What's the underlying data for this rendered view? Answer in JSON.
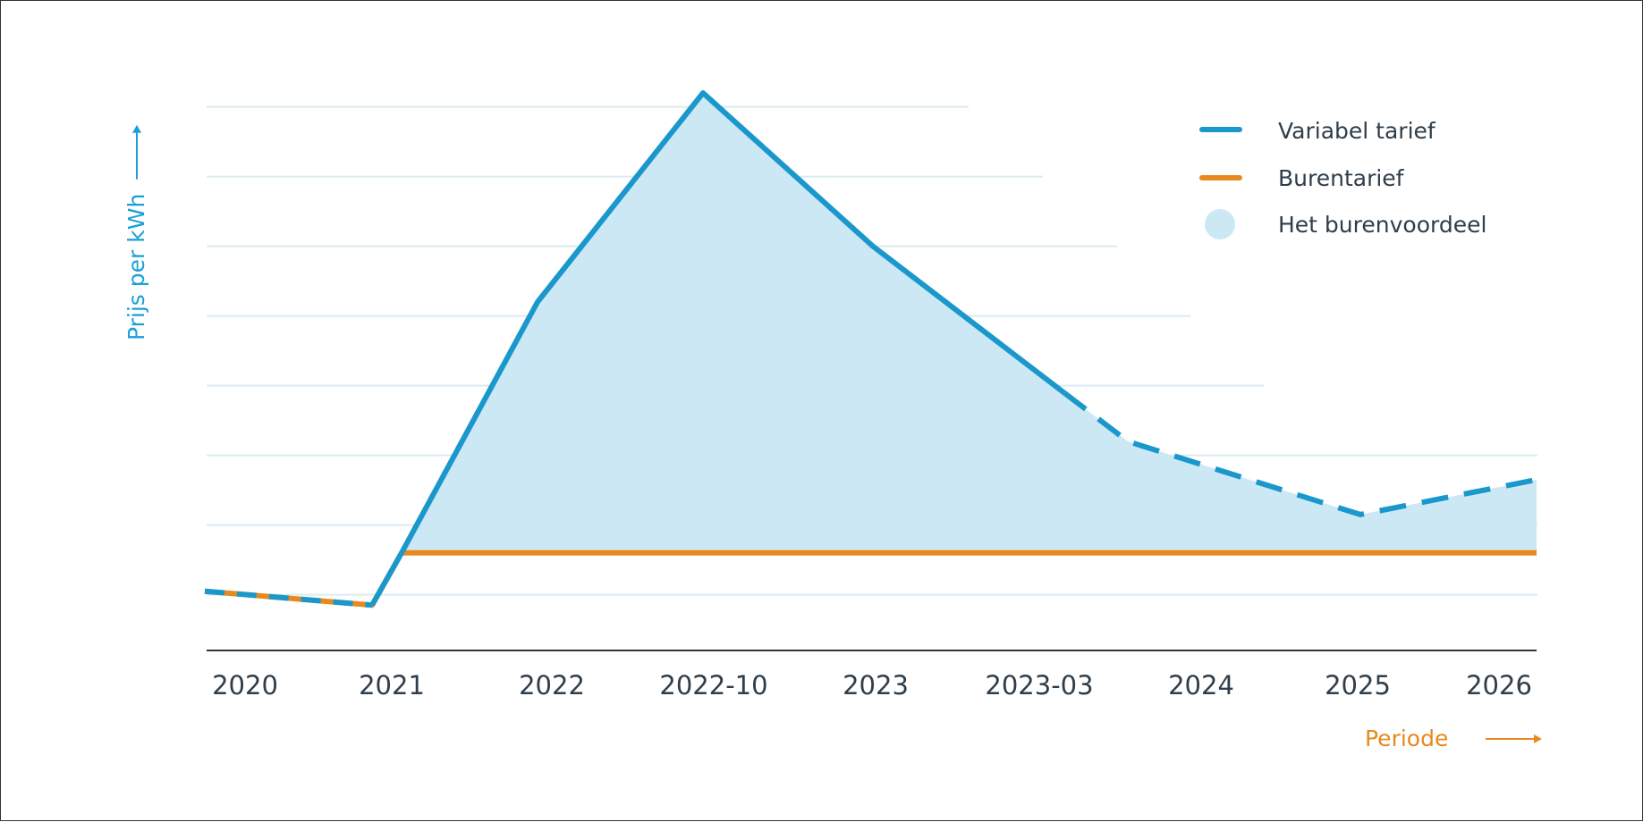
{
  "chart_data": {
    "type": "line",
    "xlabel": "Periode",
    "ylabel": "Prijs per kWh",
    "categories": [
      "2020",
      "2021",
      "2022",
      "2022-10",
      "2023",
      "2023-03",
      "2024",
      "2025",
      "2026"
    ],
    "ylim": [
      0,
      8
    ],
    "grid": true,
    "legend_position": "top-right",
    "series": [
      {
        "name": "Variabel tarief",
        "color": "#1a98cc",
        "points": [
          {
            "x": "2020",
            "y": 0.85
          },
          {
            "x": "2021",
            "y": 0.65
          },
          {
            "x": "2022",
            "y": 5.0
          },
          {
            "x": "2022-10",
            "y": 8.0
          },
          {
            "x": "2023",
            "y": 5.8
          },
          {
            "x": "2023-03",
            "y": 4.0
          },
          {
            "x": "2024",
            "y": 3.0
          },
          {
            "x": "2025",
            "y": 1.95
          },
          {
            "x": "2026",
            "y": 2.45
          }
        ],
        "dashed_from": "2023-03"
      },
      {
        "name": "Burentarief",
        "color": "#e8891d",
        "points": [
          {
            "x": "2020",
            "y": 0.85
          },
          {
            "x": "2021",
            "y": 0.65
          },
          {
            "x": "2021",
            "y": 1.4
          },
          {
            "x": "2026",
            "y": 1.4
          }
        ]
      }
    ],
    "area": {
      "name": "Het burenvoordeel",
      "color": "#cde8f5",
      "between": [
        "Variabel tarief",
        "Burentarief"
      ]
    }
  },
  "colors": {
    "axis_label_y": "#1aa0d8",
    "axis_label_x": "#e8891d",
    "grid": "#dbeaf2",
    "axis": "#333333"
  }
}
